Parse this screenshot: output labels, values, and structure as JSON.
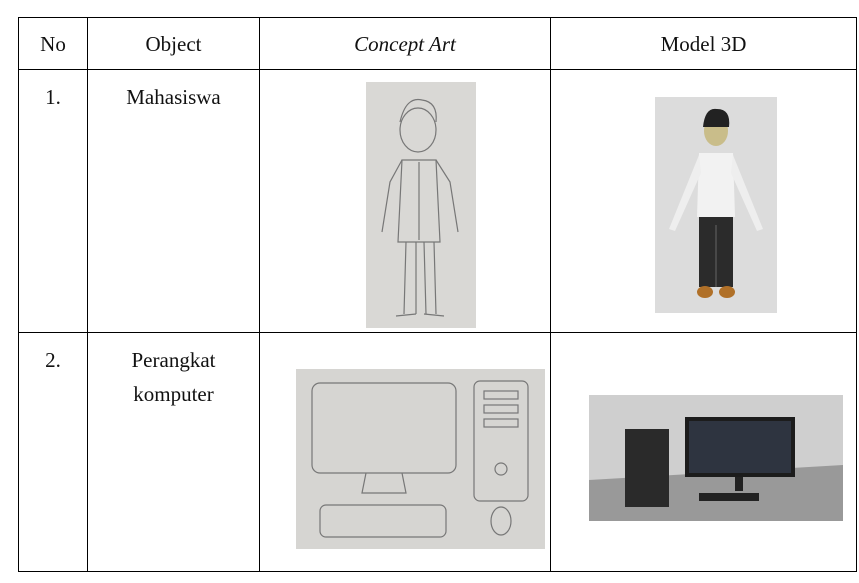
{
  "table": {
    "header": [
      "No",
      "Object",
      "Concept Art",
      "Model 3D"
    ],
    "rows": [
      [
        "1.",
        "Mahasiswa"
      ],
      [
        "2.",
        "Perangkat komputer"
      ]
    ]
  }
}
